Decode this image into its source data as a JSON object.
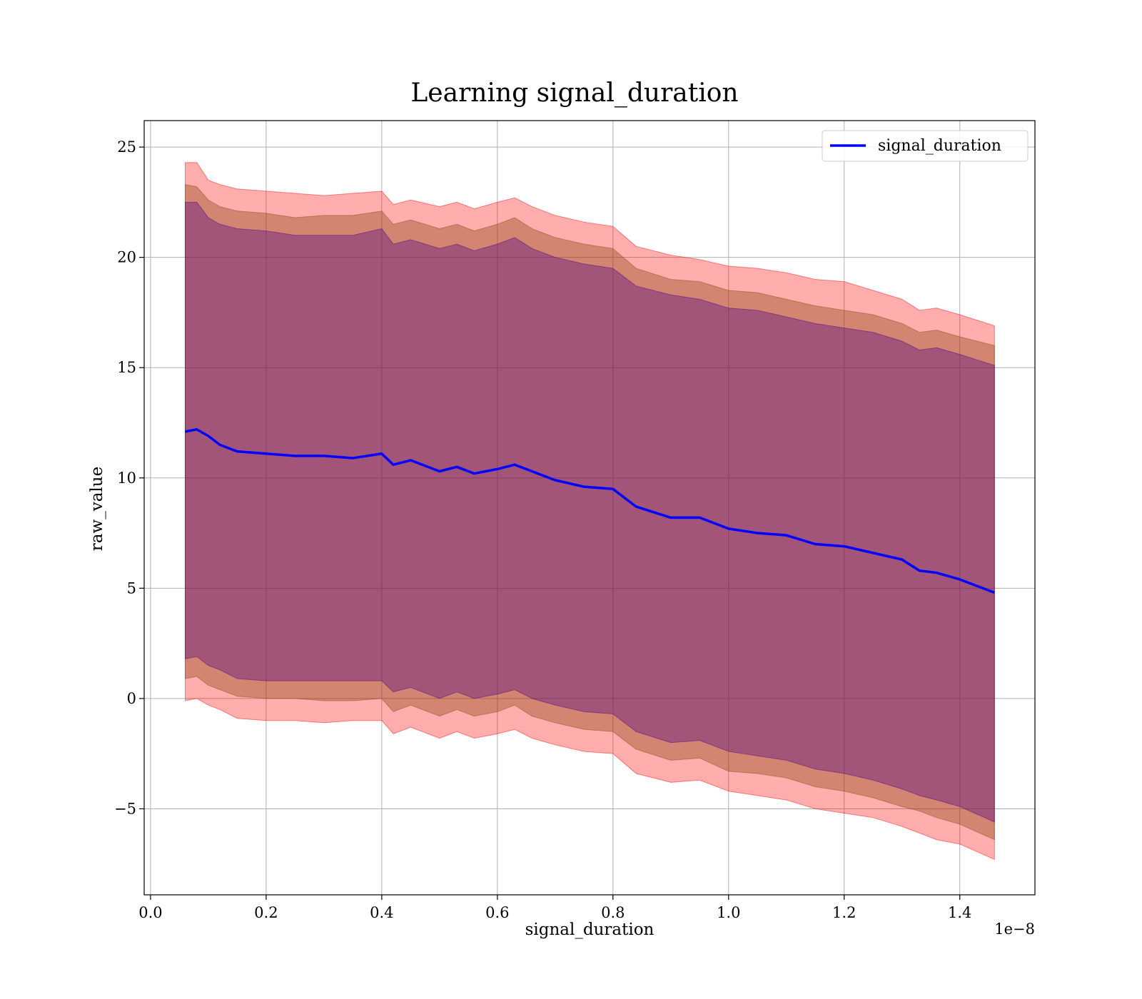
{
  "chart_data": {
    "type": "line",
    "title": "Learning signal_duration",
    "xlabel": "signal_duration",
    "ylabel": "raw_value",
    "x_offset_text": "1e−8",
    "x_scale_exponent": -8,
    "xlim": [
      -1.1e-10,
      1.53e-08
    ],
    "ylim": [
      -8.9,
      26.2
    ],
    "xticks": [
      0.0,
      2e-09,
      4e-09,
      6e-09,
      8e-09,
      1e-08,
      1.2e-08,
      1.4e-08
    ],
    "xtick_labels": [
      "0.0",
      "0.2",
      "0.4",
      "0.6",
      "0.8",
      "1.0",
      "1.2",
      "1.4"
    ],
    "yticks": [
      -5,
      0,
      5,
      10,
      15,
      20,
      25
    ],
    "ytick_labels": [
      "−5",
      "0",
      "5",
      "10",
      "15",
      "20",
      "25"
    ],
    "grid": true,
    "legend": {
      "position": "top-right",
      "entries": [
        "signal_duration"
      ]
    },
    "colors": {
      "line": "#0000ff",
      "band_outer": "#ff0000",
      "band_middle": "#8b4513",
      "band_inner": "#4b0082",
      "grid": "#b0b0b0"
    },
    "series": [
      {
        "name": "signal_duration",
        "x": [
          6e-10,
          8e-10,
          1e-09,
          1.2e-09,
          1.5e-09,
          2e-09,
          2.5e-09,
          3e-09,
          3.5e-09,
          4e-09,
          4.2e-09,
          4.5e-09,
          5e-09,
          5.3e-09,
          5.6e-09,
          6e-09,
          6.3e-09,
          6.6e-09,
          7e-09,
          7.5e-09,
          8e-09,
          8.4e-09,
          9e-09,
          9.5e-09,
          1e-08,
          1.05e-08,
          1.1e-08,
          1.15e-08,
          1.2e-08,
          1.25e-08,
          1.3e-08,
          1.33e-08,
          1.36e-08,
          1.4e-08,
          1.46e-08
        ],
        "values": [
          12.1,
          12.2,
          11.9,
          11.5,
          11.2,
          11.1,
          11.0,
          11.0,
          10.9,
          11.1,
          10.6,
          10.8,
          10.3,
          10.5,
          10.2,
          10.4,
          10.6,
          10.3,
          9.9,
          9.6,
          9.5,
          8.7,
          8.2,
          8.2,
          7.7,
          7.5,
          7.4,
          7.0,
          6.9,
          6.6,
          6.3,
          5.8,
          5.7,
          5.4,
          4.8
        ]
      }
    ],
    "bands": [
      {
        "name": "outer",
        "upper": [
          24.3,
          24.3,
          23.5,
          23.3,
          23.1,
          23.0,
          22.9,
          22.8,
          22.9,
          23.0,
          22.4,
          22.6,
          22.3,
          22.5,
          22.2,
          22.5,
          22.7,
          22.3,
          21.9,
          21.6,
          21.4,
          20.5,
          20.1,
          19.9,
          19.6,
          19.5,
          19.3,
          19.0,
          18.9,
          18.5,
          18.1,
          17.6,
          17.7,
          17.4,
          16.9
        ],
        "lower": [
          -0.1,
          0.0,
          -0.3,
          -0.5,
          -0.9,
          -1.0,
          -1.0,
          -1.1,
          -1.0,
          -1.0,
          -1.6,
          -1.3,
          -1.8,
          -1.5,
          -1.8,
          -1.6,
          -1.4,
          -1.8,
          -2.1,
          -2.4,
          -2.5,
          -3.4,
          -3.8,
          -3.7,
          -4.2,
          -4.4,
          -4.6,
          -5.0,
          -5.2,
          -5.4,
          -5.8,
          -6.1,
          -6.4,
          -6.6,
          -7.3
        ]
      },
      {
        "name": "middle",
        "upper": [
          23.3,
          23.2,
          22.6,
          22.3,
          22.1,
          22.0,
          21.8,
          21.9,
          21.9,
          22.1,
          21.5,
          21.7,
          21.3,
          21.5,
          21.2,
          21.5,
          21.8,
          21.3,
          20.9,
          20.6,
          20.4,
          19.5,
          19.0,
          18.9,
          18.5,
          18.4,
          18.1,
          17.8,
          17.6,
          17.4,
          17.0,
          16.6,
          16.7,
          16.4,
          16.0
        ],
        "lower": [
          0.9,
          1.0,
          0.6,
          0.4,
          0.1,
          0.0,
          0.0,
          -0.1,
          -0.1,
          0.0,
          -0.6,
          -0.3,
          -0.8,
          -0.5,
          -0.8,
          -0.6,
          -0.3,
          -0.8,
          -1.1,
          -1.4,
          -1.5,
          -2.3,
          -2.8,
          -2.7,
          -3.3,
          -3.4,
          -3.6,
          -4.0,
          -4.2,
          -4.5,
          -4.9,
          -5.1,
          -5.4,
          -5.7,
          -6.4
        ]
      },
      {
        "name": "inner",
        "upper": [
          22.5,
          22.5,
          21.8,
          21.5,
          21.3,
          21.2,
          21.0,
          21.0,
          21.0,
          21.3,
          20.6,
          20.8,
          20.4,
          20.6,
          20.3,
          20.6,
          20.9,
          20.4,
          20.0,
          19.7,
          19.5,
          18.7,
          18.3,
          18.1,
          17.7,
          17.6,
          17.3,
          17.0,
          16.8,
          16.6,
          16.2,
          15.8,
          15.9,
          15.6,
          15.1
        ],
        "lower": [
          1.8,
          1.9,
          1.5,
          1.3,
          0.9,
          0.8,
          0.8,
          0.8,
          0.8,
          0.8,
          0.3,
          0.5,
          0.0,
          0.3,
          0.0,
          0.2,
          0.4,
          0.0,
          -0.3,
          -0.6,
          -0.7,
          -1.5,
          -2.0,
          -1.9,
          -2.4,
          -2.6,
          -2.8,
          -3.2,
          -3.4,
          -3.7,
          -4.1,
          -4.4,
          -4.6,
          -4.9,
          -5.6
        ]
      }
    ]
  }
}
